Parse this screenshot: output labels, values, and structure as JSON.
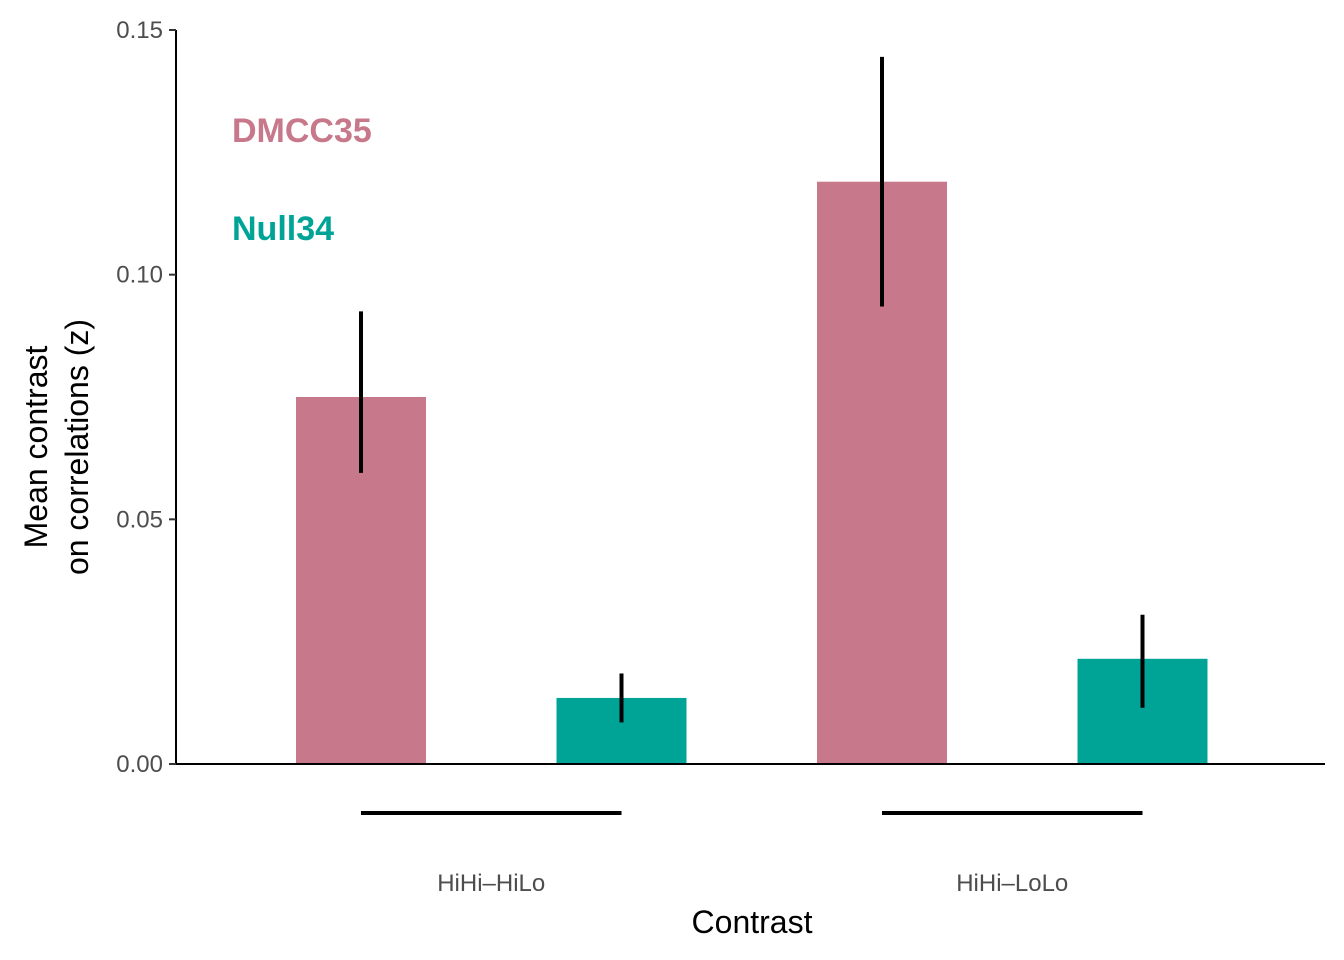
{
  "chart_data": {
    "type": "bar",
    "xlabel": "Contrast",
    "ylabel_lines": [
      "Mean contrast",
      "on correlations (z)"
    ],
    "ylim": [
      0,
      0.15
    ],
    "yticks": [
      "0.00",
      "0.05",
      "0.10",
      "0.15"
    ],
    "categories": [
      "HiHi–HiLo",
      "HiHi–LoLo"
    ],
    "series": [
      {
        "name": "DMCC35",
        "color": "#c7788a",
        "values": [
          0.075,
          0.119
        ],
        "error_low": [
          0.0595,
          0.0935
        ],
        "error_high": [
          0.0925,
          0.1445
        ]
      },
      {
        "name": "Null34",
        "color": "#00a497",
        "values": [
          0.0135,
          0.0215
        ],
        "error_low": [
          0.0085,
          0.0115
        ],
        "error_high": [
          0.0185,
          0.0305
        ]
      }
    ],
    "legend_placement": "top-left, text labels",
    "grid": false
  }
}
